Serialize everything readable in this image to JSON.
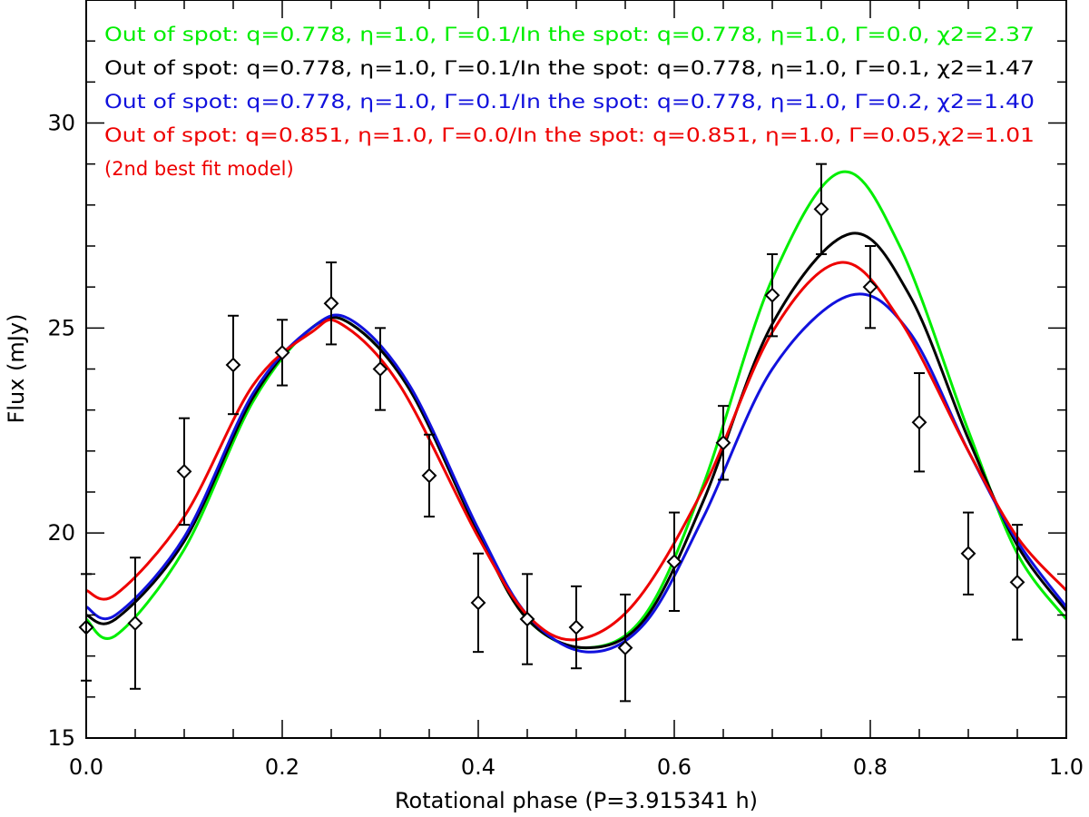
{
  "chart_data": {
    "type": "line",
    "xlabel": "Rotational phase (P=3.915341 h)",
    "ylabel": "Flux (mJy)",
    "xlim": [
      0.0,
      1.0
    ],
    "ylim": [
      15.0,
      33.0
    ],
    "x_ticks": [
      0.0,
      0.2,
      0.4,
      0.6,
      0.8,
      1.0
    ],
    "x_tick_labels": [
      "0.0",
      "0.2",
      "0.4",
      "0.6",
      "0.8",
      "1.0"
    ],
    "y_ticks": [
      15,
      20,
      25,
      30
    ],
    "y_tick_labels": [
      "15",
      "20",
      "25",
      "30"
    ],
    "grid": false,
    "observations": {
      "name": "observed flux",
      "marker": "diamond",
      "color": "#000000",
      "x": [
        0.0,
        0.05,
        0.1,
        0.15,
        0.2,
        0.25,
        0.3,
        0.35,
        0.4,
        0.45,
        0.5,
        0.55,
        0.6,
        0.65,
        0.7,
        0.75,
        0.8,
        0.85,
        0.9,
        0.95
      ],
      "y": [
        17.7,
        17.8,
        21.5,
        24.1,
        24.4,
        25.6,
        24.0,
        21.4,
        18.3,
        17.9,
        17.7,
        17.2,
        19.3,
        22.2,
        25.8,
        27.9,
        26.0,
        22.7,
        19.5,
        18.8
      ],
      "err": [
        1.3,
        1.6,
        1.3,
        1.2,
        0.8,
        1.0,
        1.0,
        1.0,
        1.2,
        1.1,
        1.0,
        1.3,
        1.2,
        0.9,
        1.0,
        1.1,
        1.0,
        1.2,
        1.0,
        1.4
      ]
    },
    "series": [
      {
        "name": "model green",
        "color": "#00ee00",
        "x": [
          0.0,
          0.03,
          0.1,
          0.17,
          0.23,
          0.27,
          0.33,
          0.4,
          0.45,
          0.51,
          0.57,
          0.63,
          0.7,
          0.77,
          0.83,
          0.9,
          0.95,
          1.0
        ],
        "y": [
          17.9,
          17.5,
          19.6,
          23.2,
          25.0,
          25.1,
          23.5,
          20.0,
          17.9,
          17.2,
          18.0,
          21.2,
          26.2,
          28.8,
          27.0,
          22.5,
          19.5,
          17.9
        ]
      },
      {
        "name": "model black",
        "color": "#000000",
        "x": [
          0.0,
          0.03,
          0.1,
          0.17,
          0.23,
          0.27,
          0.33,
          0.4,
          0.45,
          0.51,
          0.57,
          0.63,
          0.7,
          0.78,
          0.84,
          0.9,
          0.95,
          1.0
        ],
        "y": [
          18.0,
          17.9,
          19.8,
          23.3,
          25.0,
          25.1,
          23.5,
          20.0,
          17.9,
          17.2,
          17.9,
          20.8,
          25.1,
          27.3,
          25.8,
          22.3,
          19.7,
          18.1
        ]
      },
      {
        "name": "model blue",
        "color": "#1111dd",
        "x": [
          0.0,
          0.03,
          0.1,
          0.17,
          0.23,
          0.27,
          0.33,
          0.4,
          0.45,
          0.51,
          0.57,
          0.63,
          0.7,
          0.78,
          0.84,
          0.9,
          0.95,
          1.0
        ],
        "y": [
          18.2,
          18.0,
          19.9,
          23.4,
          25.0,
          25.2,
          23.6,
          20.1,
          18.0,
          17.1,
          17.8,
          20.4,
          24.0,
          25.8,
          24.9,
          22.0,
          19.8,
          18.2
        ]
      },
      {
        "name": "model red",
        "color": "#ee0000",
        "x": [
          0.0,
          0.03,
          0.1,
          0.17,
          0.23,
          0.26,
          0.32,
          0.4,
          0.45,
          0.5,
          0.56,
          0.63,
          0.7,
          0.77,
          0.83,
          0.9,
          0.95,
          1.0
        ],
        "y": [
          18.6,
          18.5,
          20.4,
          23.6,
          24.9,
          25.1,
          23.6,
          19.9,
          18.0,
          17.4,
          18.3,
          21.1,
          24.9,
          26.6,
          25.2,
          22.0,
          19.9,
          18.6
        ]
      }
    ],
    "annotations": [
      {
        "text": "Out of spot: q=0.778, η=1.0, Γ=0.1/In the spot: q=0.778, η=1.0, Γ=0.0, χ2=2.37",
        "color": "#00ee00"
      },
      {
        "text": "Out of spot: q=0.778, η=1.0, Γ=0.1/In the spot: q=0.778, η=1.0, Γ=0.1, χ2=1.47",
        "color": "#000000"
      },
      {
        "text": "Out of spot: q=0.778, η=1.0, Γ=0.1/In the spot: q=0.778, η=1.0, Γ=0.2, χ2=1.40",
        "color": "#1111dd"
      },
      {
        "text": "Out of spot: q=0.851, η=1.0, Γ=0.0/In the spot: q=0.851, η=1.0, Γ=0.05,χ2=1.01",
        "color": "#ee0000"
      },
      {
        "text": "(2nd best fit model)",
        "color": "#ee0000"
      }
    ]
  }
}
